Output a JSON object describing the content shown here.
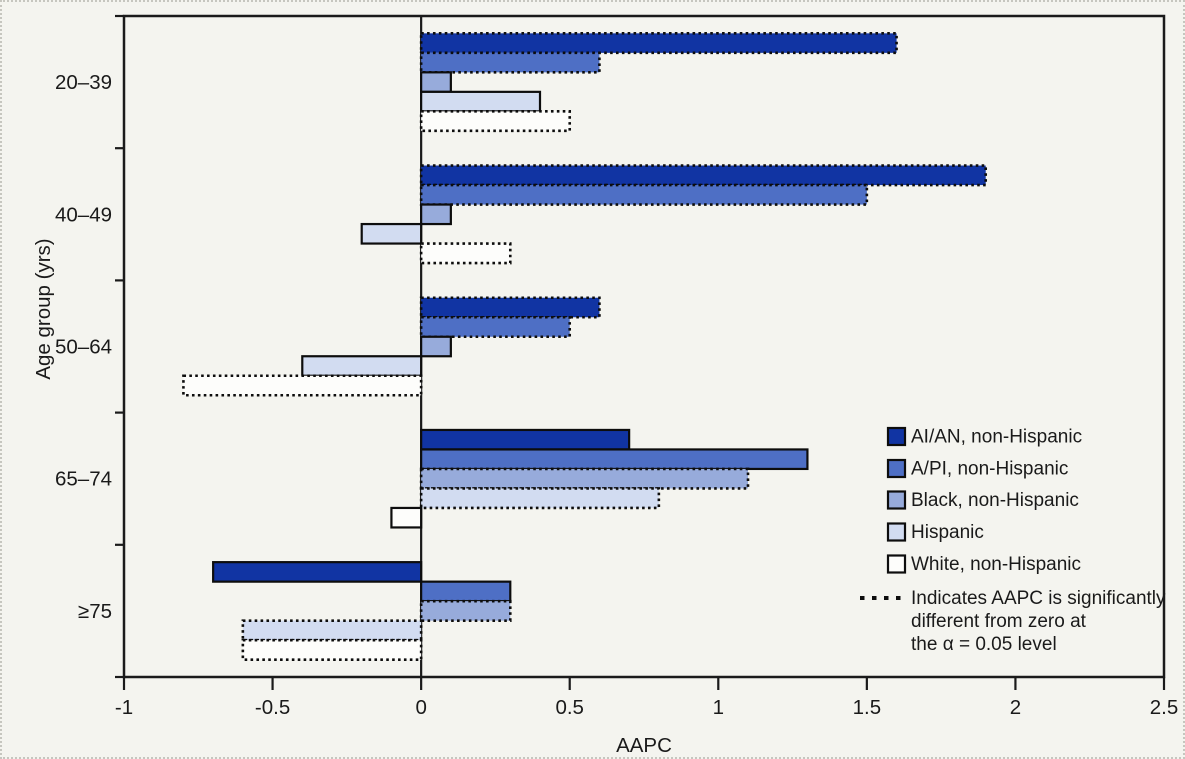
{
  "chart_data": {
    "type": "bar",
    "orientation": "horizontal",
    "title": "",
    "xlabel": "AAPC",
    "ylabel": "Age group (yrs)",
    "xlim": [
      -1,
      2.5
    ],
    "xticks": [
      -1,
      -0.5,
      0,
      0.5,
      1,
      1.5,
      2,
      2.5
    ],
    "xtick_labels": [
      "-1",
      "-0.5",
      "0",
      "0.5",
      "1",
      "1.5",
      "2",
      "2.5"
    ],
    "categories": [
      "20–39",
      "40–49",
      "50–64",
      "65–74",
      "≥75"
    ],
    "series": [
      {
        "name": "AI/AN, non-Hispanic",
        "color": "#1134a3",
        "values": [
          1.6,
          1.9,
          0.6,
          0.7,
          -0.7
        ],
        "significant": [
          true,
          true,
          true,
          false,
          false
        ]
      },
      {
        "name": "A/PI, non-Hispanic",
        "color": "#4e6fc5",
        "values": [
          0.6,
          1.5,
          0.5,
          1.3,
          0.3
        ],
        "significant": [
          true,
          true,
          true,
          false,
          false
        ]
      },
      {
        "name": "Black, non-Hispanic",
        "color": "#97abdb",
        "values": [
          0.1,
          0.1,
          0.1,
          1.1,
          0.3
        ],
        "significant": [
          false,
          false,
          false,
          true,
          true
        ]
      },
      {
        "name": "Hispanic",
        "color": "#d2dcf1",
        "values": [
          0.4,
          -0.2,
          -0.4,
          0.8,
          -0.6
        ],
        "significant": [
          false,
          false,
          false,
          true,
          true
        ]
      },
      {
        "name": "White, non-Hispanic",
        "color": "#fdfdfb",
        "values": [
          0.5,
          0.3,
          -0.8,
          -0.1,
          -0.6
        ],
        "significant": [
          true,
          true,
          true,
          false,
          true
        ]
      }
    ],
    "legend": {
      "position": "inside-right",
      "note_marker": "dotted-line",
      "note_lines": [
        "Indicates AAPC is significantly",
        "different from zero at",
        "the α = 0.05 level"
      ]
    },
    "grid": false,
    "significance_style": "dashed-outline",
    "axis_color": "#1a1a1a"
  }
}
